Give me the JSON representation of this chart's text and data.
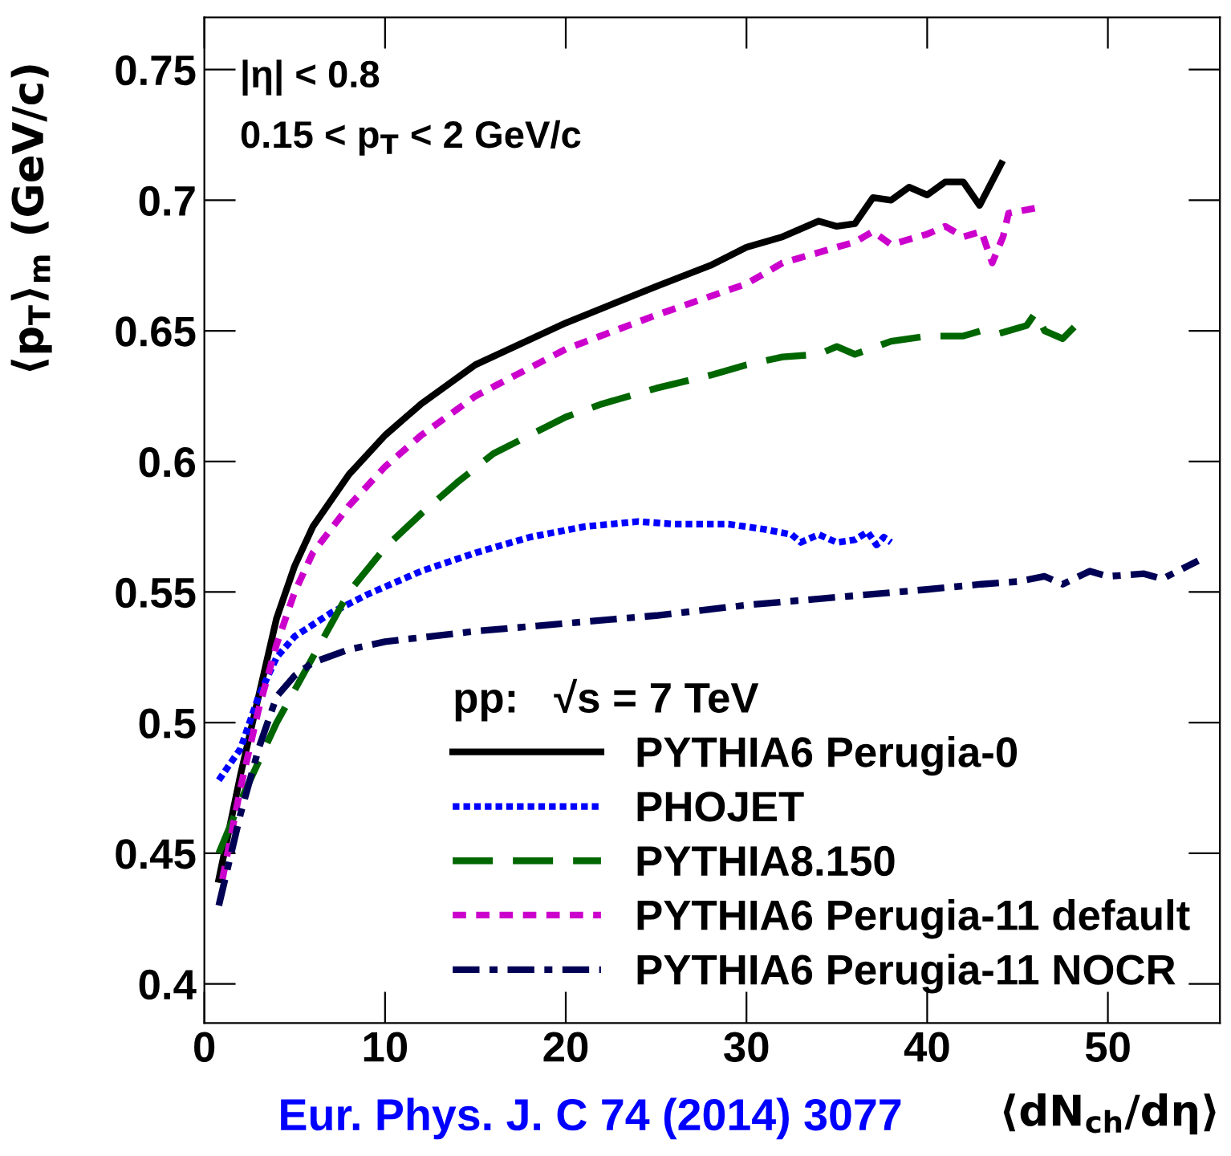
{
  "chart_data": {
    "type": "line",
    "xlabel": "⟨dN$_{ch}$/dη⟩",
    "ylabel": "⟨p$_{T}$⟩$_{m}$ (GeV/c)",
    "legend_title": "pp:   √s = 7 TeV",
    "legend": "bottom right",
    "grid": false,
    "marker": "none",
    "xlim": [
      0,
      56.2
    ],
    "ylim": [
      0.385,
      0.77
    ],
    "xticks": [
      0,
      10,
      20,
      30,
      40,
      50
    ],
    "yticks": [
      0.4,
      0.45,
      0.5,
      0.55,
      0.6,
      0.65,
      0.7,
      0.75
    ],
    "annotations": [
      "|η| < 0.8",
      "0.15 < p$_{T}$ < 2 GeV/c",
      "Eur. Phys. J. C 74 (2014) 3077"
    ],
    "series": [
      {
        "name": "PYTHIA6 Perugia-0",
        "color": "#000000",
        "line_style": "solid",
        "x": [
          0.8,
          2,
          3,
          4,
          5,
          6,
          8,
          10,
          12,
          15,
          20,
          25,
          28,
          30,
          32,
          34,
          35,
          36,
          37,
          38,
          39,
          40,
          41,
          42,
          42.9,
          44.1
        ],
        "values": [
          0.44,
          0.48,
          0.51,
          0.54,
          0.56,
          0.575,
          0.595,
          0.61,
          0.622,
          0.637,
          0.653,
          0.667,
          0.675,
          0.682,
          0.686,
          0.692,
          0.69,
          0.691,
          0.701,
          0.7,
          0.705,
          0.702,
          0.707,
          0.707,
          0.698,
          0.714
        ]
      },
      {
        "name": "PHOJET",
        "color": "#0000ff",
        "line_style": "dotted",
        "x": [
          0.8,
          2,
          3,
          4,
          5,
          7,
          9,
          12,
          15,
          18,
          21,
          24,
          26,
          29,
          31,
          32.5,
          33,
          34,
          35,
          36,
          36.7,
          37.2,
          37.6,
          38
        ],
        "values": [
          0.478,
          0.49,
          0.51,
          0.525,
          0.533,
          0.542,
          0.549,
          0.558,
          0.565,
          0.571,
          0.575,
          0.577,
          0.576,
          0.576,
          0.574,
          0.572,
          0.569,
          0.572,
          0.569,
          0.57,
          0.573,
          0.568,
          0.571,
          0.569
        ]
      },
      {
        "name": "PYTHIA8.150",
        "color": "#006600",
        "line_style": "dashed",
        "x": [
          0.8,
          2,
          4,
          6,
          8,
          10,
          12,
          14,
          16,
          18,
          20,
          22,
          25,
          28,
          30,
          32,
          34,
          35,
          36,
          38,
          40,
          42,
          43,
          44,
          45.5,
          46,
          46.5,
          47.5,
          48.5
        ],
        "values": [
          0.45,
          0.47,
          0.5,
          0.525,
          0.55,
          0.567,
          0.58,
          0.592,
          0.603,
          0.61,
          0.617,
          0.622,
          0.628,
          0.633,
          0.637,
          0.64,
          0.641,
          0.644,
          0.641,
          0.646,
          0.648,
          0.648,
          0.65,
          0.649,
          0.652,
          0.657,
          0.65,
          0.647,
          0.654
        ]
      },
      {
        "name": "PYTHIA6 Perugia-11 default",
        "color": "#cc00cc",
        "line_style": "dashed",
        "x": [
          1,
          2,
          3,
          4,
          5,
          6,
          8,
          10,
          12,
          15,
          20,
          25,
          30,
          32,
          34,
          36,
          37,
          38,
          40,
          41,
          42,
          43,
          43.6,
          44.2,
          44.5,
          46
        ],
        "values": [
          0.44,
          0.475,
          0.505,
          0.53,
          0.55,
          0.565,
          0.583,
          0.598,
          0.61,
          0.625,
          0.643,
          0.656,
          0.668,
          0.676,
          0.68,
          0.684,
          0.688,
          0.683,
          0.687,
          0.69,
          0.686,
          0.688,
          0.676,
          0.686,
          0.695,
          0.697
        ]
      },
      {
        "name": "PYTHIA6 Perugia-11 NOCR",
        "color": "#000055",
        "line_style": "dashdot",
        "x": [
          0.8,
          2,
          3,
          4,
          5,
          6,
          8,
          10,
          15,
          20,
          25,
          30,
          35,
          40,
          43,
          45,
          46.5,
          47.5,
          49,
          50,
          52,
          53,
          55
        ],
        "values": [
          0.43,
          0.465,
          0.49,
          0.51,
          0.518,
          0.523,
          0.528,
          0.531,
          0.535,
          0.538,
          0.541,
          0.545,
          0.548,
          0.551,
          0.553,
          0.554,
          0.556,
          0.553,
          0.558,
          0.556,
          0.557,
          0.555,
          0.562
        ]
      }
    ]
  }
}
